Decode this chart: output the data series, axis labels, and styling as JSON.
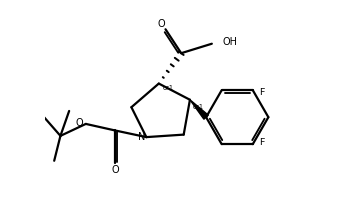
{
  "bg_color": "#ffffff",
  "line_color": "#000000",
  "line_width": 1.6,
  "fig_width": 3.4,
  "fig_height": 2.02,
  "dpi": 100,
  "xlim": [
    -2.5,
    7.5
  ],
  "ylim": [
    1.5,
    9.5
  ]
}
